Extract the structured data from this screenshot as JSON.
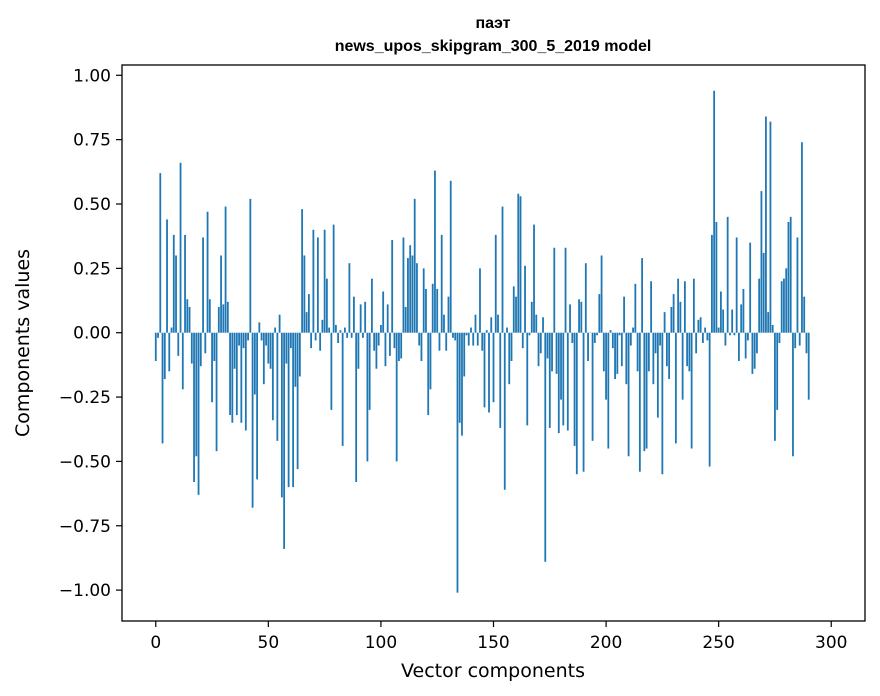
{
  "chart_data": {
    "type": "bar",
    "title": "паэт",
    "subtitle": "news_upos_skipgram_300_5_2019 model",
    "xlabel": "Vector components",
    "ylabel": "Components values",
    "xlim": [
      -15,
      315
    ],
    "ylim": [
      -1.12,
      1.04
    ],
    "xticks": [
      0,
      50,
      100,
      150,
      200,
      250,
      300
    ],
    "xtick_labels": [
      "0",
      "50",
      "100",
      "150",
      "200",
      "250",
      "300"
    ],
    "yticks": [
      -1.0,
      -0.75,
      -0.5,
      -0.25,
      0.0,
      0.25,
      0.5,
      0.75,
      1.0
    ],
    "ytick_labels": [
      "−1.00",
      "−0.75",
      "−0.50",
      "−0.25",
      "0.00",
      "0.25",
      "0.50",
      "0.75",
      "1.00"
    ],
    "grid": false,
    "bar_color": "#1f77b4",
    "values": [
      -0.11,
      -0.02,
      0.62,
      -0.43,
      -0.18,
      0.44,
      -0.15,
      0.02,
      0.38,
      0.3,
      -0.09,
      0.66,
      -0.22,
      0.38,
      0.13,
      0.1,
      -0.12,
      -0.58,
      -0.48,
      -0.63,
      -0.13,
      0.37,
      -0.08,
      0.47,
      0.13,
      -0.27,
      -0.11,
      -0.46,
      0.1,
      0.3,
      0.11,
      0.49,
      0.12,
      -0.32,
      -0.35,
      -0.14,
      -0.32,
      -0.05,
      -0.35,
      -0.06,
      -0.38,
      -0.03,
      0.52,
      -0.68,
      -0.24,
      -0.57,
      0.04,
      -0.03,
      -0.2,
      -0.05,
      -0.12,
      -0.14,
      -0.34,
      0.02,
      -0.42,
      0.07,
      -0.64,
      -0.84,
      -0.12,
      -0.6,
      -0.06,
      -0.6,
      -0.21,
      -0.53,
      -0.17,
      0.48,
      0.3,
      0.08,
      0.15,
      -0.06,
      0.4,
      -0.03,
      0.37,
      -0.07,
      0.05,
      0.4,
      0.21,
      0.02,
      -0.3,
      0.42,
      0.03,
      -0.04,
      0.01,
      -0.44,
      0.02,
      -0.02,
      0.27,
      -0.02,
      0.14,
      -0.58,
      -0.14,
      0.11,
      -0.02,
      0.12,
      -0.5,
      -0.3,
      0.21,
      -0.07,
      -0.14,
      -0.05,
      0.03,
      0.16,
      -0.13,
      0.11,
      -0.09,
      0.36,
      -0.06,
      -0.5,
      -0.11,
      -0.1,
      0.37,
      0.1,
      0.29,
      0.34,
      0.3,
      0.52,
      0.27,
      -0.05,
      -0.11,
      0.25,
      0.17,
      -0.32,
      -0.22,
      0.19,
      0.63,
      0.17,
      -0.07,
      0.38,
      0.07,
      -0.07,
      0.14,
      0.59,
      -0.02,
      -0.03,
      -1.01,
      -0.35,
      -0.4,
      -0.17,
      -0.01,
      -0.05,
      0.02,
      -0.05,
      0.07,
      -0.05,
      0.25,
      -0.07,
      -0.29,
      0.01,
      -0.31,
      0.06,
      -0.27,
      0.38,
      0.07,
      -0.37,
      0.49,
      -0.61,
      0.02,
      -0.2,
      -0.11,
      0.18,
      0.14,
      0.54,
      0.53,
      -0.06,
      0.26,
      -0.36,
      -0.01,
      0.12,
      0.42,
      0.07,
      -0.13,
      -0.08,
      0.06,
      -0.89,
      -0.1,
      -0.37,
      -0.15,
      0.33,
      -0.16,
      -0.39,
      -0.26,
      -0.36,
      0.33,
      -0.38,
      0.11,
      -0.04,
      -0.44,
      -0.55,
      0.13,
      0.12,
      -0.54,
      0.27,
      -0.11,
      0.0,
      -0.42,
      -0.04,
      -0.01,
      0.15,
      0.3,
      -0.15,
      -0.26,
      -0.45,
      0.01,
      -0.06,
      -0.18,
      -0.16,
      -0.01,
      -0.13,
      0.14,
      -0.2,
      -0.48,
      -0.05,
      0.02,
      0.19,
      -0.15,
      -0.54,
      0.29,
      -0.46,
      -0.45,
      -0.15,
      0.2,
      -0.2,
      -0.08,
      -0.33,
      -0.05,
      -0.55,
      0.08,
      -0.13,
      -0.18,
      0.1,
      0.15,
      -0.43,
      0.21,
      0.12,
      -0.26,
      0.2,
      -0.13,
      -0.15,
      -0.45,
      0.21,
      -0.08,
      0.05,
      0.06,
      -0.04,
      0.02,
      -0.03,
      -0.52,
      0.38,
      0.94,
      0.43,
      0.02,
      0.16,
      0.09,
      -0.05,
      0.45,
      -0.01,
      0.09,
      -0.01,
      0.37,
      -0.11,
      0.11,
      0.17,
      -0.1,
      -0.03,
      0.35,
      -0.16,
      -0.14,
      -0.08,
      0.21,
      0.55,
      0.31,
      0.84,
      0.08,
      0.82,
      0.03,
      -0.42,
      -0.3,
      -0.04,
      0.2,
      0.21,
      0.25,
      0.43,
      0.45,
      -0.48,
      -0.06,
      0.37,
      -0.05,
      0.74,
      0.14,
      -0.08,
      -0.26
    ]
  }
}
